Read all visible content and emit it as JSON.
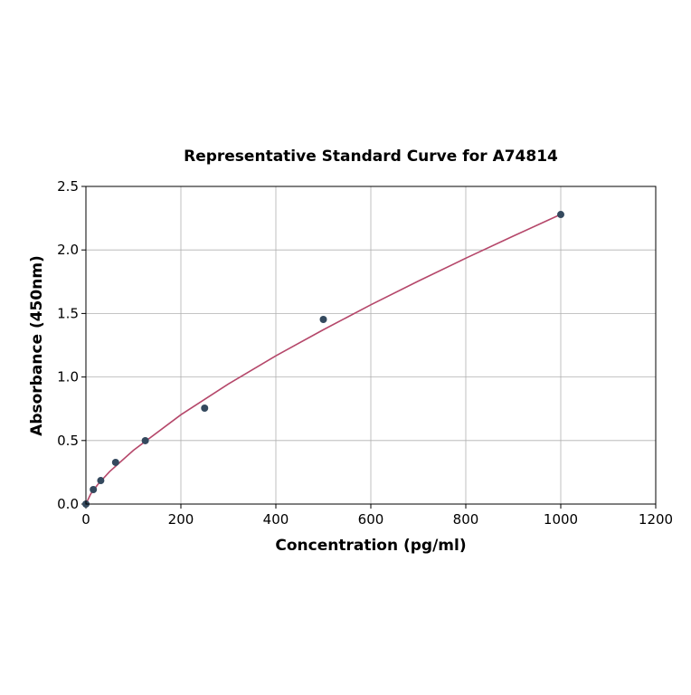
{
  "chart_data": {
    "type": "scatter",
    "title": "Representative Standard Curve for A74814",
    "xlabel": "Concentration (pg/ml)",
    "ylabel": "Absorbance (450nm)",
    "xlim": [
      0,
      1200
    ],
    "ylim": [
      0,
      2.5
    ],
    "xticks": [
      0,
      200,
      400,
      600,
      800,
      1000,
      1200
    ],
    "yticks": [
      0.0,
      0.5,
      1.0,
      1.5,
      2.0,
      2.5
    ],
    "xtick_labels": [
      "0",
      "200",
      "400",
      "600",
      "800",
      "1000",
      "1200"
    ],
    "ytick_labels": [
      "0.0",
      "0.5",
      "1.0",
      "1.5",
      "2.0",
      "2.5"
    ],
    "grid": true,
    "points": {
      "x": [
        0,
        15.6,
        31.25,
        62.5,
        125,
        250,
        500,
        1000
      ],
      "y": [
        0.0,
        0.114,
        0.185,
        0.328,
        0.499,
        0.755,
        1.453,
        2.279
      ],
      "color": "#34495e"
    },
    "fit_curve": {
      "x": [
        0,
        10,
        25,
        50,
        100,
        200,
        300,
        400,
        500,
        600,
        700,
        800,
        900,
        1000
      ],
      "y": [
        0,
        0.079,
        0.154,
        0.256,
        0.423,
        0.703,
        0.945,
        1.167,
        1.372,
        1.568,
        1.755,
        1.935,
        2.109,
        2.28
      ],
      "color": "#b5476a"
    }
  }
}
